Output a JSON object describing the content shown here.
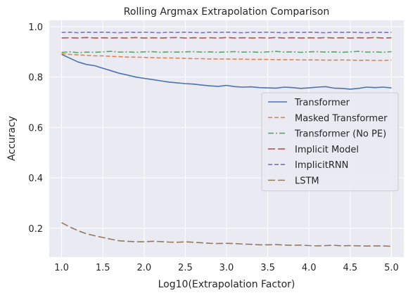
{
  "chart_data": {
    "type": "line",
    "title": "Rolling Argmax Extrapolation Comparison",
    "xlabel": "Log10(Extrapolation Factor)",
    "ylabel": "Accuracy",
    "xlim": [
      0.85,
      5.15
    ],
    "ylim": [
      0.085,
      1.025
    ],
    "xticks": [
      1.0,
      1.5,
      2.0,
      2.5,
      3.0,
      3.5,
      4.0,
      4.5,
      5.0
    ],
    "xtick_labels": [
      "1.0",
      "1.5",
      "2.0",
      "2.5",
      "3.0",
      "3.5",
      "4.0",
      "4.5",
      "5.0"
    ],
    "yticks": [
      0.2,
      0.4,
      0.6,
      0.8,
      1.0
    ],
    "ytick_labels": [
      "0.2",
      "0.4",
      "0.6",
      "0.8",
      "1.0"
    ],
    "grid": true,
    "legend_position": "center-right",
    "background": "#eaeaf2",
    "series": [
      {
        "name": "Transformer",
        "color": "#4c72b0",
        "style": "solid",
        "x": [
          1.0,
          1.1,
          1.2,
          1.3,
          1.4,
          1.5,
          1.6,
          1.7,
          1.8,
          1.9,
          2.0,
          2.1,
          2.2,
          2.3,
          2.4,
          2.5,
          2.6,
          2.7,
          2.8,
          2.9,
          3.0,
          3.1,
          3.2,
          3.3,
          3.4,
          3.5,
          3.6,
          3.7,
          3.8,
          3.9,
          4.0,
          4.1,
          4.2,
          4.3,
          4.4,
          4.5,
          4.6,
          4.7,
          4.8,
          4.9,
          5.0
        ],
        "values": [
          0.89,
          0.875,
          0.86,
          0.85,
          0.845,
          0.835,
          0.825,
          0.815,
          0.808,
          0.8,
          0.795,
          0.79,
          0.785,
          0.78,
          0.777,
          0.774,
          0.772,
          0.768,
          0.765,
          0.763,
          0.767,
          0.762,
          0.76,
          0.761,
          0.758,
          0.757,
          0.756,
          0.76,
          0.758,
          0.755,
          0.757,
          0.76,
          0.762,
          0.756,
          0.755,
          0.752,
          0.755,
          0.76,
          0.758,
          0.76,
          0.757
        ]
      },
      {
        "name": "Masked Transformer",
        "color": "#dd8452",
        "style": "dashed",
        "x": [
          1.0,
          1.1,
          1.2,
          1.3,
          1.4,
          1.5,
          1.6,
          1.7,
          1.8,
          1.9,
          2.0,
          2.1,
          2.2,
          2.3,
          2.4,
          2.5,
          2.6,
          2.7,
          2.8,
          2.9,
          3.0,
          3.1,
          3.2,
          3.3,
          3.4,
          3.5,
          3.6,
          3.7,
          3.8,
          3.9,
          4.0,
          4.1,
          4.2,
          4.3,
          4.4,
          4.5,
          4.6,
          4.7,
          4.8,
          4.9,
          5.0
        ],
        "values": [
          0.893,
          0.89,
          0.888,
          0.886,
          0.884,
          0.884,
          0.882,
          0.881,
          0.879,
          0.879,
          0.878,
          0.877,
          0.876,
          0.876,
          0.875,
          0.874,
          0.873,
          0.873,
          0.872,
          0.872,
          0.872,
          0.871,
          0.871,
          0.87,
          0.87,
          0.87,
          0.869,
          0.869,
          0.869,
          0.868,
          0.868,
          0.868,
          0.867,
          0.867,
          0.868,
          0.867,
          0.866,
          0.867,
          0.866,
          0.866,
          0.867
        ]
      },
      {
        "name": "Transformer (No PE)",
        "color": "#55a868",
        "style": "dashdot",
        "x": [
          1.0,
          1.1,
          1.2,
          1.3,
          1.4,
          1.5,
          1.6,
          1.7,
          1.8,
          1.9,
          2.0,
          2.1,
          2.2,
          2.3,
          2.4,
          2.5,
          2.6,
          2.7,
          2.8,
          2.9,
          3.0,
          3.1,
          3.2,
          3.3,
          3.4,
          3.5,
          3.6,
          3.7,
          3.8,
          3.9,
          4.0,
          4.1,
          4.2,
          4.3,
          4.4,
          4.5,
          4.6,
          4.7,
          4.8,
          4.9,
          5.0
        ],
        "values": [
          0.898,
          0.9,
          0.897,
          0.899,
          0.898,
          0.9,
          0.902,
          0.899,
          0.9,
          0.898,
          0.9,
          0.901,
          0.898,
          0.9,
          0.899,
          0.9,
          0.901,
          0.899,
          0.9,
          0.898,
          0.9,
          0.901,
          0.899,
          0.9,
          0.898,
          0.9,
          0.902,
          0.899,
          0.9,
          0.898,
          0.9,
          0.901,
          0.899,
          0.9,
          0.898,
          0.9,
          0.902,
          0.899,
          0.9,
          0.898,
          0.901
        ]
      },
      {
        "name": "Implicit Model",
        "color": "#c44e52",
        "style": "dashed-long",
        "x": [
          1.0,
          1.1,
          1.2,
          1.3,
          1.4,
          1.5,
          1.6,
          1.7,
          1.8,
          1.9,
          2.0,
          2.1,
          2.2,
          2.3,
          2.4,
          2.5,
          2.6,
          2.7,
          2.8,
          2.9,
          3.0,
          3.1,
          3.2,
          3.3,
          3.4,
          3.5,
          3.6,
          3.7,
          3.8,
          3.9,
          4.0,
          4.1,
          4.2,
          4.3,
          4.4,
          4.5,
          4.6,
          4.7,
          4.8,
          4.9,
          5.0
        ],
        "values": [
          0.955,
          0.956,
          0.955,
          0.957,
          0.955,
          0.956,
          0.955,
          0.956,
          0.955,
          0.957,
          0.955,
          0.956,
          0.955,
          0.956,
          0.957,
          0.955,
          0.956,
          0.955,
          0.956,
          0.955,
          0.957,
          0.955,
          0.956,
          0.955,
          0.956,
          0.955,
          0.957,
          0.955,
          0.956,
          0.955,
          0.956,
          0.955,
          0.957,
          0.955,
          0.956,
          0.955,
          0.956,
          0.955,
          0.957,
          0.955,
          0.956
        ]
      },
      {
        "name": "ImplicitRNN",
        "color": "#8172b3",
        "style": "dashed",
        "x": [
          1.0,
          1.1,
          1.2,
          1.3,
          1.4,
          1.5,
          1.6,
          1.7,
          1.8,
          1.9,
          2.0,
          2.1,
          2.2,
          2.3,
          2.4,
          2.5,
          2.6,
          2.7,
          2.8,
          2.9,
          3.0,
          3.1,
          3.2,
          3.3,
          3.4,
          3.5,
          3.6,
          3.7,
          3.8,
          3.9,
          4.0,
          4.1,
          4.2,
          4.3,
          4.4,
          4.5,
          4.6,
          4.7,
          4.8,
          4.9,
          5.0
        ],
        "values": [
          0.977,
          0.978,
          0.976,
          0.978,
          0.977,
          0.978,
          0.977,
          0.976,
          0.978,
          0.977,
          0.978,
          0.977,
          0.976,
          0.978,
          0.977,
          0.978,
          0.977,
          0.976,
          0.978,
          0.977,
          0.978,
          0.977,
          0.976,
          0.978,
          0.977,
          0.978,
          0.977,
          0.976,
          0.978,
          0.977,
          0.978,
          0.977,
          0.976,
          0.978,
          0.977,
          0.978,
          0.977,
          0.976,
          0.978,
          0.977,
          0.977
        ]
      },
      {
        "name": "LSTM",
        "color": "#937860",
        "style": "dashed-long",
        "x": [
          1.0,
          1.1,
          1.2,
          1.3,
          1.4,
          1.5,
          1.6,
          1.7,
          1.8,
          1.9,
          2.0,
          2.1,
          2.2,
          2.3,
          2.4,
          2.5,
          2.6,
          2.7,
          2.8,
          2.9,
          3.0,
          3.1,
          3.2,
          3.3,
          3.4,
          3.5,
          3.6,
          3.7,
          3.8,
          3.9,
          4.0,
          4.1,
          4.2,
          4.3,
          4.4,
          4.5,
          4.6,
          4.7,
          4.8,
          4.9,
          5.0
        ],
        "values": [
          0.222,
          0.205,
          0.19,
          0.178,
          0.17,
          0.163,
          0.156,
          0.15,
          0.148,
          0.146,
          0.146,
          0.148,
          0.147,
          0.145,
          0.144,
          0.146,
          0.144,
          0.142,
          0.14,
          0.139,
          0.14,
          0.139,
          0.137,
          0.136,
          0.134,
          0.134,
          0.135,
          0.133,
          0.132,
          0.133,
          0.131,
          0.13,
          0.131,
          0.132,
          0.13,
          0.131,
          0.13,
          0.129,
          0.13,
          0.13,
          0.128
        ]
      }
    ]
  }
}
